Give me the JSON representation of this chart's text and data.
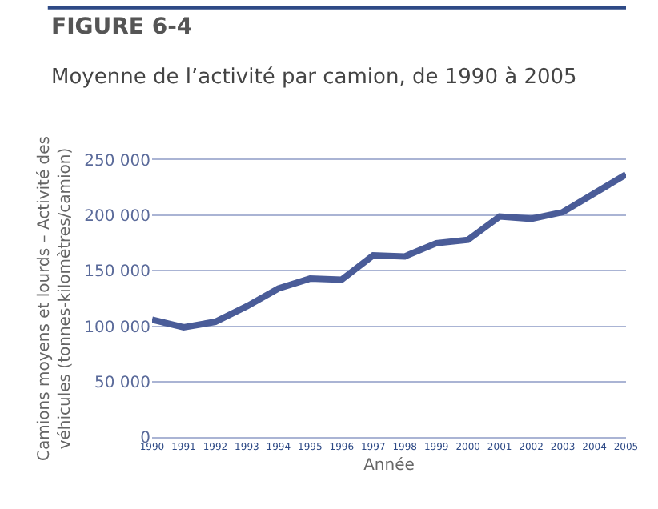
{
  "chart_data": {
    "type": "line",
    "title": "FIGURE 6-4",
    "subtitle": "Moyenne de l’activité par camion, de 1990 à 2005",
    "xlabel": "Année",
    "ylabel": "Camions moyens et lourds – Activité des véhicules (tonnes-kilomètres/camion)",
    "categories": [
      "1990",
      "1991",
      "1992",
      "1993",
      "1994",
      "1995",
      "1996",
      "1997",
      "1998",
      "1999",
      "2000",
      "2001",
      "2002",
      "2003",
      "2004",
      "2005"
    ],
    "series": [
      {
        "color": "#4a5c98",
        "values": [
          106000,
          99000,
          104000,
          118000,
          134000,
          143000,
          142000,
          164000,
          163000,
          175000,
          178000,
          199000,
          197000,
          203000,
          220000,
          237000
        ]
      }
    ],
    "ylim": [
      0,
      250000
    ],
    "yticks": [
      {
        "value": 0,
        "label": "0"
      },
      {
        "value": 50000,
        "label": "50 000"
      },
      {
        "value": 100000,
        "label": "100 000"
      },
      {
        "value": 150000,
        "label": "150 000"
      },
      {
        "value": 200000,
        "label": "200 000"
      },
      {
        "value": 250000,
        "label": "250 000"
      }
    ],
    "grid": "y",
    "marker": "none",
    "line_style": "solid"
  }
}
